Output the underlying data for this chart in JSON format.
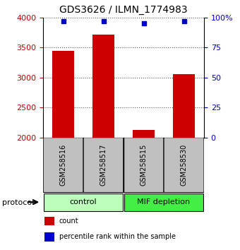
{
  "title": "GDS3626 / ILMN_1774983",
  "categories": [
    "GSM258516",
    "GSM258517",
    "GSM258515",
    "GSM258530"
  ],
  "bar_values": [
    3450,
    3720,
    2130,
    3060
  ],
  "percentile_values": [
    97,
    97,
    95,
    97
  ],
  "bar_color": "#cc0000",
  "percentile_color": "#0000cc",
  "ylim_left": [
    2000,
    4000
  ],
  "ylim_right": [
    0,
    100
  ],
  "yticks_left": [
    2000,
    2500,
    3000,
    3500,
    4000
  ],
  "yticks_right": [
    0,
    25,
    50,
    75,
    100
  ],
  "ytick_labels_right": [
    "0",
    "25",
    "50",
    "75",
    "100%"
  ],
  "groups": [
    {
      "label": "control",
      "indices": [
        0,
        1
      ],
      "color": "#bbffbb"
    },
    {
      "label": "MIF depletion",
      "indices": [
        2,
        3
      ],
      "color": "#44ee44"
    }
  ],
  "group_label_prefix": "protocol",
  "legend_items": [
    {
      "label": "count",
      "color": "#cc0000"
    },
    {
      "label": "percentile rank within the sample",
      "color": "#0000cc"
    }
  ],
  "bar_width": 0.55,
  "label_box_color": "#c0c0c0",
  "label_box_edge": "#000000",
  "figsize": [
    3.4,
    3.54
  ],
  "dpi": 100
}
